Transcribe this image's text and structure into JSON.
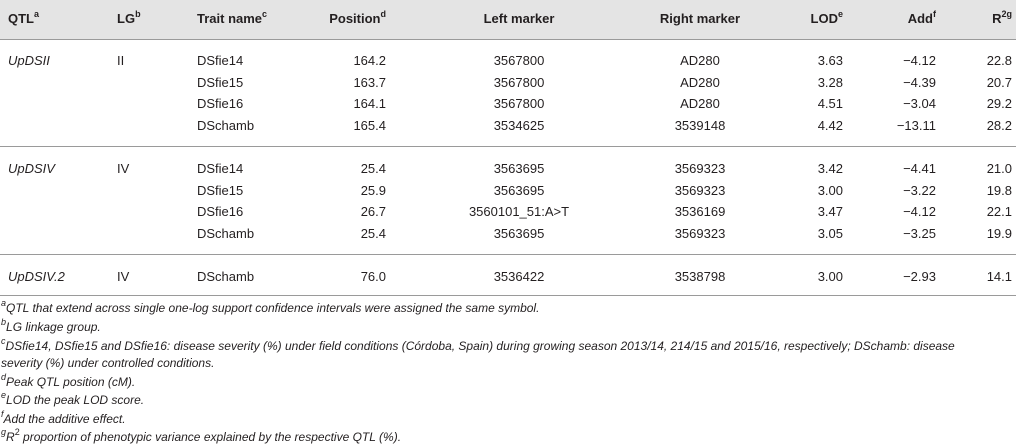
{
  "header": {
    "qtl": "QTL",
    "qtl_sup": "a",
    "lg": "LG",
    "lg_sup": "b",
    "trait": "Trait name",
    "trait_sup": "c",
    "position": "Position",
    "position_sup": "d",
    "left": "Left marker",
    "right": "Right marker",
    "lod": "LOD",
    "lod_sup": "e",
    "add": "Add",
    "add_sup": "f",
    "r2": "R",
    "r2_sup": "2g"
  },
  "groups": [
    {
      "qtl": "UpDSII",
      "lg": "II",
      "rows": [
        {
          "trait": "DSfie14",
          "position": "164.2",
          "left": "3567800",
          "right": "AD280",
          "lod": "3.63",
          "add": "−4.12",
          "r2": "22.8"
        },
        {
          "trait": "DSfie15",
          "position": "163.7",
          "left": "3567800",
          "right": "AD280",
          "lod": "3.28",
          "add": "−4.39",
          "r2": "20.7"
        },
        {
          "trait": "DSfie16",
          "position": "164.1",
          "left": "3567800",
          "right": "AD280",
          "lod": "4.51",
          "add": "−3.04",
          "r2": "29.2"
        },
        {
          "trait": "DSchamb",
          "position": "165.4",
          "left": "3534625",
          "right": "3539148",
          "lod": "4.42",
          "add": "−13.11",
          "r2": "28.2"
        }
      ]
    },
    {
      "qtl": "UpDSIV",
      "lg": "IV",
      "rows": [
        {
          "trait": "DSfie14",
          "position": "25.4",
          "left": "3563695",
          "right": "3569323",
          "lod": "3.42",
          "add": "−4.41",
          "r2": "21.0"
        },
        {
          "trait": "DSfie15",
          "position": "25.9",
          "left": "3563695",
          "right": "3569323",
          "lod": "3.00",
          "add": "−3.22",
          "r2": "19.8"
        },
        {
          "trait": "DSfie16",
          "position": "26.7",
          "left": "3560101_51:A>T",
          "right": "3536169",
          "lod": "3.47",
          "add": "−4.12",
          "r2": "22.1"
        },
        {
          "trait": "DSchamb",
          "position": "25.4",
          "left": "3563695",
          "right": "3569323",
          "lod": "3.05",
          "add": "−3.25",
          "r2": "19.9"
        }
      ]
    },
    {
      "qtl": "UpDSIV.2",
      "lg": "IV",
      "rows": [
        {
          "trait": "DSchamb",
          "position": "76.0",
          "left": "3536422",
          "right": "3538798",
          "lod": "3.00",
          "add": "−2.93",
          "r2": "14.1"
        }
      ]
    }
  ],
  "footnotes": [
    {
      "sup": "a",
      "text": "QTL that extend across single one-log support confidence intervals were assigned the same symbol."
    },
    {
      "sup": "b",
      "text": "LG linkage group."
    },
    {
      "sup": "c",
      "text": "DSfie14, DSfie15 and DSfie16: disease severity (%) under field conditions (Córdoba, Spain) during growing season 2013/14, 214/15 and 2015/16, respectively; DSchamb: disease"
    },
    {
      "sup": "",
      "text": "severity (%) under controlled conditions."
    },
    {
      "sup": "d",
      "text": "Peak QTL position (cM)."
    },
    {
      "sup": "e",
      "text": "LOD the peak LOD score."
    },
    {
      "sup": "f",
      "text": "Add the additive effect."
    },
    {
      "sup": "g",
      "text": "R",
      "sup2": "2",
      "text2": " proportion of phenotypic variance explained by the respective QTL (%)."
    }
  ]
}
